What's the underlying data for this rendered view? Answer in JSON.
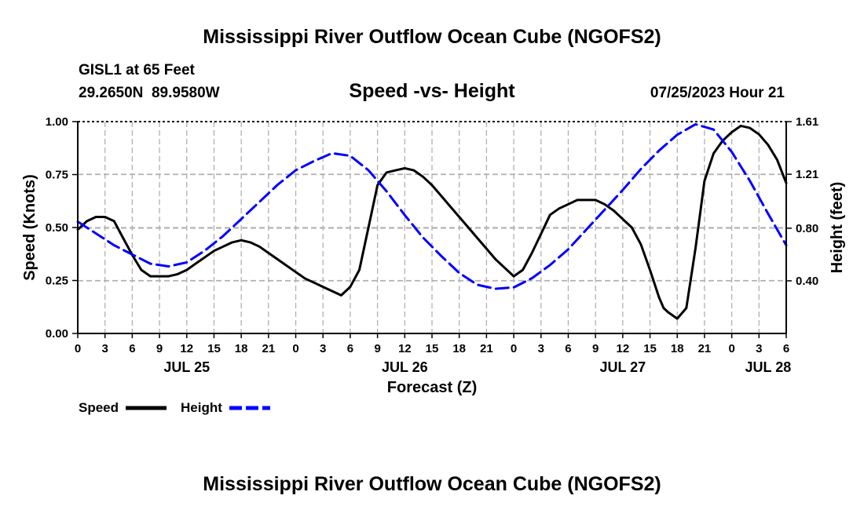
{
  "chart_data": {
    "type": "line",
    "title": "Mississippi River Outflow Ocean Cube (NGOFS2)",
    "station": "GISL1 at 65 Feet",
    "coordinates": "29.2650N  89.9580W",
    "subtitle": "Speed -vs- Height",
    "timestamp": "07/25/2023 Hour 21",
    "xlabel": "Forecast (Z)",
    "ylabel_left": "Speed (Knots)",
    "ylabel_right": "Height (feet)",
    "x_range_hours": [
      0,
      78
    ],
    "ylim_left": [
      0,
      1.0
    ],
    "ylim_right": [
      0.0,
      1.61
    ],
    "grid": true,
    "x_ticks": [
      {
        "hour": 0,
        "label": "0"
      },
      {
        "hour": 3,
        "label": "3"
      },
      {
        "hour": 6,
        "label": "6"
      },
      {
        "hour": 9,
        "label": "9"
      },
      {
        "hour": 12,
        "label": "12"
      },
      {
        "hour": 15,
        "label": "15"
      },
      {
        "hour": 18,
        "label": "18"
      },
      {
        "hour": 21,
        "label": "21"
      },
      {
        "hour": 24,
        "label": "0"
      },
      {
        "hour": 27,
        "label": "3"
      },
      {
        "hour": 30,
        "label": "6"
      },
      {
        "hour": 33,
        "label": "9"
      },
      {
        "hour": 36,
        "label": "12"
      },
      {
        "hour": 39,
        "label": "15"
      },
      {
        "hour": 42,
        "label": "18"
      },
      {
        "hour": 45,
        "label": "21"
      },
      {
        "hour": 48,
        "label": "0"
      },
      {
        "hour": 51,
        "label": "3"
      },
      {
        "hour": 54,
        "label": "6"
      },
      {
        "hour": 57,
        "label": "9"
      },
      {
        "hour": 60,
        "label": "12"
      },
      {
        "hour": 63,
        "label": "15"
      },
      {
        "hour": 66,
        "label": "18"
      },
      {
        "hour": 69,
        "label": "21"
      },
      {
        "hour": 72,
        "label": "0"
      },
      {
        "hour": 75,
        "label": "3"
      },
      {
        "hour": 78,
        "label": "6"
      }
    ],
    "date_labels": [
      {
        "hour": 12,
        "label": "JUL 25"
      },
      {
        "hour": 36,
        "label": "JUL 26"
      },
      {
        "hour": 60,
        "label": "JUL 27"
      },
      {
        "hour": 76,
        "label": "JUL 28"
      }
    ],
    "y_ticks_left": [
      "0.00",
      "0.25",
      "0.50",
      "0.75",
      "1.00"
    ],
    "y_ticks_right": [
      {
        "value": 0.4,
        "label": "0.40"
      },
      {
        "value": 0.8,
        "label": "0.80"
      },
      {
        "value": 1.21,
        "label": "1.21"
      },
      {
        "value": 1.61,
        "label": "1.61"
      }
    ],
    "series": [
      {
        "name": "Speed",
        "axis": "left",
        "style": "solid",
        "color": "#000000",
        "x": [
          0,
          1,
          2,
          3,
          4,
          5,
          6,
          7,
          8,
          9,
          10,
          11,
          12,
          13,
          14,
          15,
          16,
          17,
          18,
          19,
          20,
          21,
          22,
          23,
          24,
          25,
          26,
          27,
          28,
          29,
          30,
          30.5,
          31,
          32,
          33,
          34,
          35,
          36,
          37,
          38,
          39,
          40,
          41,
          42,
          43,
          44,
          45,
          46,
          47,
          48,
          49,
          50,
          51,
          52,
          53,
          54,
          55,
          56,
          57,
          58,
          59,
          60,
          61,
          62,
          63,
          64,
          64.5,
          65,
          66,
          67,
          68,
          69,
          70,
          71,
          72,
          73,
          74,
          75,
          76,
          77,
          78
        ],
        "y": [
          0.49,
          0.53,
          0.55,
          0.55,
          0.53,
          0.45,
          0.37,
          0.3,
          0.27,
          0.27,
          0.27,
          0.28,
          0.3,
          0.33,
          0.36,
          0.39,
          0.41,
          0.43,
          0.44,
          0.43,
          0.41,
          0.38,
          0.35,
          0.32,
          0.29,
          0.26,
          0.24,
          0.22,
          0.2,
          0.18,
          0.22,
          0.26,
          0.3,
          0.5,
          0.7,
          0.76,
          0.77,
          0.78,
          0.77,
          0.74,
          0.7,
          0.65,
          0.6,
          0.55,
          0.5,
          0.45,
          0.4,
          0.35,
          0.31,
          0.27,
          0.3,
          0.38,
          0.47,
          0.56,
          0.59,
          0.61,
          0.63,
          0.63,
          0.63,
          0.61,
          0.58,
          0.54,
          0.5,
          0.42,
          0.3,
          0.17,
          0.12,
          0.1,
          0.07,
          0.12,
          0.4,
          0.72,
          0.85,
          0.91,
          0.95,
          0.98,
          0.97,
          0.94,
          0.89,
          0.82,
          0.71
        ]
      },
      {
        "name": "Height",
        "axis": "right",
        "style": "dashed",
        "color": "#0000ff",
        "x": [
          0,
          2,
          4,
          6,
          8,
          10,
          12,
          14,
          16,
          18,
          20,
          22,
          24,
          26,
          28,
          30,
          32,
          34,
          36,
          38,
          40,
          42,
          44,
          46,
          48,
          50,
          52,
          54,
          56,
          58,
          60,
          62,
          64,
          66,
          68,
          70,
          72,
          74,
          76,
          78
        ],
        "y": [
          0.85,
          0.76,
          0.67,
          0.6,
          0.53,
          0.51,
          0.54,
          0.63,
          0.74,
          0.87,
          1.0,
          1.13,
          1.24,
          1.31,
          1.37,
          1.35,
          1.24,
          1.08,
          0.9,
          0.73,
          0.59,
          0.46,
          0.37,
          0.34,
          0.35,
          0.42,
          0.52,
          0.64,
          0.79,
          0.94,
          1.09,
          1.25,
          1.39,
          1.51,
          1.59,
          1.55,
          1.38,
          1.16,
          0.91,
          0.67
        ]
      }
    ],
    "legend": [
      {
        "label": "Speed",
        "style": "solid",
        "color": "#000000"
      },
      {
        "label": "Height",
        "style": "dashed",
        "color": "#0000ff"
      }
    ],
    "footer_title": "Mississippi River Outflow Ocean Cube (NGOFS2)"
  }
}
